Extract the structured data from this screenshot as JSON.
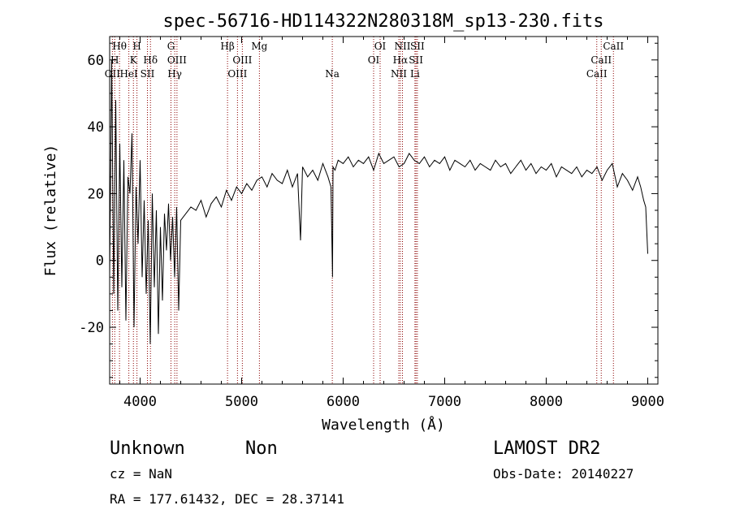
{
  "chart_data": {
    "type": "line",
    "title": "spec-56716-HD114322N280318M_sp13-230.fits",
    "xlabel": "Wavelength (Å)",
    "ylabel": "Flux (relative)",
    "xlim": [
      3700,
      9100
    ],
    "ylim": [
      -37,
      67
    ],
    "xticks": [
      4000,
      5000,
      6000,
      7000,
      8000,
      9000
    ],
    "yticks": [
      -20,
      0,
      20,
      40,
      60
    ],
    "grid": false,
    "series": [
      {
        "values_desc": "spectrum",
        "x": [
          3700,
          3720,
          3740,
          3760,
          3780,
          3800,
          3820,
          3840,
          3860,
          3880,
          3900,
          3920,
          3940,
          3960,
          3980,
          4000,
          4020,
          4040,
          4060,
          4080,
          4100,
          4120,
          4140,
          4160,
          4180,
          4200,
          4220,
          4240,
          4260,
          4280,
          4300,
          4320,
          4340,
          4360,
          4380,
          4400,
          4450,
          4500,
          4550,
          4600,
          4650,
          4700,
          4750,
          4800,
          4850,
          4900,
          4950,
          5000,
          5050,
          5100,
          5150,
          5200,
          5250,
          5300,
          5350,
          5400,
          5450,
          5500,
          5550,
          5580,
          5600,
          5650,
          5700,
          5750,
          5800,
          5850,
          5880,
          5895,
          5900,
          5920,
          5950,
          6000,
          6050,
          6100,
          6150,
          6200,
          6250,
          6300,
          6350,
          6400,
          6450,
          6500,
          6550,
          6600,
          6650,
          6700,
          6750,
          6800,
          6850,
          6900,
          6950,
          7000,
          7050,
          7100,
          7150,
          7200,
          7250,
          7300,
          7350,
          7400,
          7450,
          7500,
          7550,
          7600,
          7650,
          7700,
          7750,
          7800,
          7850,
          7900,
          7950,
          8000,
          8050,
          8100,
          8150,
          8200,
          8250,
          8300,
          8350,
          8400,
          8450,
          8500,
          8550,
          8600,
          8650,
          8700,
          8750,
          8800,
          8850,
          8900,
          8930,
          8960,
          8980,
          9000
        ],
        "y": [
          -5,
          60,
          -10,
          48,
          -15,
          35,
          -8,
          30,
          -18,
          25,
          20,
          38,
          -20,
          22,
          5,
          30,
          -5,
          18,
          -10,
          12,
          -25,
          20,
          -8,
          15,
          -22,
          10,
          -12,
          14,
          3,
          17,
          0,
          13,
          -5,
          16,
          -15,
          12,
          14,
          16,
          15,
          18,
          13,
          17,
          19,
          16,
          21,
          18,
          22,
          20,
          23,
          21,
          24,
          25,
          22,
          26,
          24,
          23,
          27,
          22,
          26,
          6,
          28,
          25,
          27,
          24,
          29,
          25,
          22,
          -5,
          28,
          27,
          30,
          29,
          31,
          28,
          30,
          29,
          31,
          27,
          32,
          29,
          30,
          31,
          28,
          29,
          32,
          30,
          29,
          31,
          28,
          30,
          29,
          31,
          27,
          30,
          29,
          28,
          30,
          27,
          29,
          28,
          27,
          30,
          28,
          29,
          26,
          28,
          30,
          27,
          29,
          26,
          28,
          27,
          29,
          25,
          28,
          27,
          26,
          28,
          25,
          27,
          26,
          28,
          24,
          27,
          29,
          22,
          26,
          24,
          21,
          25,
          22,
          18,
          16,
          2
        ]
      }
    ],
    "line_markers": [
      {
        "wl": 3727,
        "row": 3,
        "text": "OII"
      },
      {
        "wl": 3750,
        "row": 2,
        "text": "H"
      },
      {
        "wl": 3797,
        "row": 1,
        "text": "Hθ"
      },
      {
        "wl": 3889,
        "row": 3,
        "text": "HeI"
      },
      {
        "wl": 3934,
        "row": 2,
        "text": "K"
      },
      {
        "wl": 3969,
        "row": 1,
        "text": "H"
      },
      {
        "wl": 4072,
        "row": 3,
        "text": "SII"
      },
      {
        "wl": 4102,
        "row": 2,
        "text": "Hδ"
      },
      {
        "wl": 4304,
        "row": 1,
        "text": "G"
      },
      {
        "wl": 4341,
        "row": 3,
        "text": "Hγ"
      },
      {
        "wl": 4363,
        "row": 2,
        "text": "OIII"
      },
      {
        "wl": 4861,
        "row": 1,
        "text": "Hβ"
      },
      {
        "wl": 4959,
        "row": 3,
        "text": "OIII"
      },
      {
        "wl": 5007,
        "row": 2,
        "text": "OIII"
      },
      {
        "wl": 5175,
        "row": 1,
        "text": "Mg"
      },
      {
        "wl": 5893,
        "row": 3,
        "text": "Na"
      },
      {
        "wl": 6300,
        "row": 2,
        "text": "OI"
      },
      {
        "wl": 6364,
        "row": 1,
        "text": "OI"
      },
      {
        "wl": 6548,
        "row": 3,
        "text": "NII"
      },
      {
        "wl": 6563,
        "row": 2,
        "text": "Hα"
      },
      {
        "wl": 6584,
        "row": 1,
        "text": "NII"
      },
      {
        "wl": 6707,
        "row": 3,
        "text": "Li"
      },
      {
        "wl": 6717,
        "row": 2,
        "text": "SII"
      },
      {
        "wl": 6731,
        "row": 1,
        "text": "SII"
      },
      {
        "wl": 8498,
        "row": 3,
        "text": "CaII"
      },
      {
        "wl": 8542,
        "row": 2,
        "text": "CaII"
      },
      {
        "wl": 8662,
        "row": 1,
        "text": "CaII"
      }
    ],
    "colors": {
      "line": "#000000",
      "marker": "#8b0000"
    }
  },
  "footer": {
    "class_label": "Unknown",
    "subclass_label": "Non",
    "survey": "LAMOST DR2",
    "cz": "cz = NaN",
    "obs_date": "Obs-Date: 20140227",
    "coords": "RA = 177.61432, DEC =  28.37141"
  }
}
